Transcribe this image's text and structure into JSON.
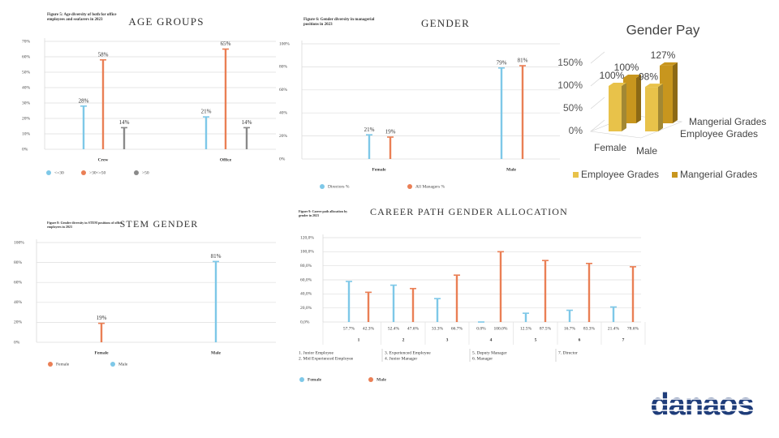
{
  "chart_data": [
    {
      "type": "bar",
      "caption": "Figure 5: Age diversity of both for office employees and seafarers in 2023",
      "title": "AGE GROUPS",
      "categories": [
        "Crew",
        "Office"
      ],
      "series": [
        {
          "name": "<=30",
          "color": "#7ec8e8",
          "values": [
            28,
            21
          ],
          "value_labels": [
            "28%",
            "21%"
          ]
        },
        {
          "name": ">30<=50",
          "color": "#ea7f55",
          "values": [
            58,
            65
          ],
          "value_labels": [
            "58%",
            "65%"
          ]
        },
        {
          "name": ">50",
          "color": "#8a8a8a",
          "values": [
            14,
            14
          ],
          "value_labels": [
            "14%",
            "14%"
          ]
        }
      ],
      "ylim": [
        0,
        70
      ],
      "yticks": [
        {
          "value": 0,
          "label": "0%"
        },
        {
          "value": 10,
          "label": "10%"
        },
        {
          "value": 20,
          "label": "20%"
        },
        {
          "value": 30,
          "label": "30%"
        },
        {
          "value": 40,
          "label": "40%"
        },
        {
          "value": 50,
          "label": "50%"
        },
        {
          "value": 60,
          "label": "60%"
        },
        {
          "value": 70,
          "label": "70%"
        }
      ],
      "grid": true,
      "legend": "bottom"
    },
    {
      "type": "bar",
      "caption": "Figure 6: Gender diversity in managerial positions in 2023",
      "title": "GENDER",
      "categories": [
        "Female",
        "Male"
      ],
      "series": [
        {
          "name": "Directors %",
          "color": "#7ec8e8",
          "values": [
            21,
            79
          ],
          "value_labels": [
            "21%",
            "79%"
          ]
        },
        {
          "name": "All Managers %",
          "color": "#ea7f55",
          "values": [
            19,
            81
          ],
          "value_labels": [
            "19%",
            "81%"
          ]
        }
      ],
      "ylim": [
        0,
        100
      ],
      "yticks": [
        {
          "value": 0,
          "label": "0%"
        },
        {
          "value": 20,
          "label": "20%"
        },
        {
          "value": 40,
          "label": "40%"
        },
        {
          "value": 60,
          "label": "60%"
        },
        {
          "value": 80,
          "label": "80%"
        },
        {
          "value": 100,
          "label": "100%"
        }
      ],
      "grid": true,
      "legend": "bottom"
    },
    {
      "type": "bar3d",
      "title": "Gender Pay",
      "categories": [
        "Female",
        "Male"
      ],
      "series": [
        {
          "name": "Employee Grades",
          "color": "#e8c24a",
          "values": [
            100,
            98
          ],
          "value_labels": [
            "100%",
            "98%"
          ]
        },
        {
          "name": "Mangerial Grades",
          "color": "#c8961e",
          "values": [
            100,
            127
          ],
          "value_labels": [
            "100%",
            "127%"
          ]
        }
      ],
      "ylim": [
        0,
        150
      ],
      "yticks": [
        {
          "value": 0,
          "label": "0%"
        },
        {
          "value": 50,
          "label": "50%"
        },
        {
          "value": 100,
          "label": "100%"
        },
        {
          "value": 150,
          "label": "150%"
        }
      ],
      "legend": "bottom"
    },
    {
      "type": "bar",
      "caption": "Figure 8: Gender diversity in STEM positions of office employees in 2023",
      "title": "STEM GENDER",
      "categories": [
        "Female",
        "Male"
      ],
      "series": [
        {
          "name": "Female",
          "color": "#ea7f55",
          "values": [
            19,
            null
          ],
          "value_labels": [
            "19%",
            null
          ]
        },
        {
          "name": "Male",
          "color": "#7ec8e8",
          "values": [
            null,
            81
          ],
          "value_labels": [
            null,
            "81%"
          ]
        }
      ],
      "ylim": [
        0,
        100
      ],
      "yticks": [
        {
          "value": 0,
          "label": "0%"
        },
        {
          "value": 20,
          "label": "20%"
        },
        {
          "value": 40,
          "label": "40%"
        },
        {
          "value": 60,
          "label": "60%"
        },
        {
          "value": 80,
          "label": "80%"
        },
        {
          "value": 100,
          "label": "100%"
        }
      ],
      "grid": true,
      "legend": "bottom"
    },
    {
      "type": "bar",
      "caption": "Figure 9: Career path allocation by gender in 2023",
      "title": "CAREER PATH GENDER ALLOCATION",
      "categories": [
        "1",
        "2",
        "3",
        "4",
        "5",
        "6",
        "7"
      ],
      "series": [
        {
          "name": "Female",
          "color": "#7ec8e8",
          "values": [
            57.7,
            52.4,
            33.3,
            0.0,
            12.5,
            16.7,
            21.4
          ],
          "value_labels": [
            "57.7%",
            "52.4%",
            "33.3%",
            "0.0%",
            "12.5%",
            "16.7%",
            "21.4%"
          ]
        },
        {
          "name": "Male",
          "color": "#ea7f55",
          "values": [
            42.3,
            47.6,
            66.7,
            100.0,
            87.5,
            83.3,
            78.6
          ],
          "value_labels": [
            "42.3%",
            "47.6%",
            "66.7%",
            "100.0%",
            "87.5%",
            "83.3%",
            "78.6%"
          ]
        }
      ],
      "ylim": [
        0,
        120
      ],
      "yticks": [
        {
          "value": 0,
          "label": "0,0%"
        },
        {
          "value": 20,
          "label": "20,0%"
        },
        {
          "value": 40,
          "label": "40,0%"
        },
        {
          "value": 60,
          "label": "60,0%"
        },
        {
          "value": 80,
          "label": "80,0%"
        },
        {
          "value": 100,
          "label": "100,0%"
        },
        {
          "value": 120,
          "label": "120,0%"
        }
      ],
      "grid": true,
      "legend": "bottom",
      "labels_below": true,
      "notes": [
        "1. Junior Employee",
        "2. Mid Experienced Employee",
        "3. Experienced Employee",
        "4. Junior Manager",
        "5. Deputy Manager",
        "6. Manager",
        "7. Director"
      ]
    }
  ],
  "logo": "danaos"
}
